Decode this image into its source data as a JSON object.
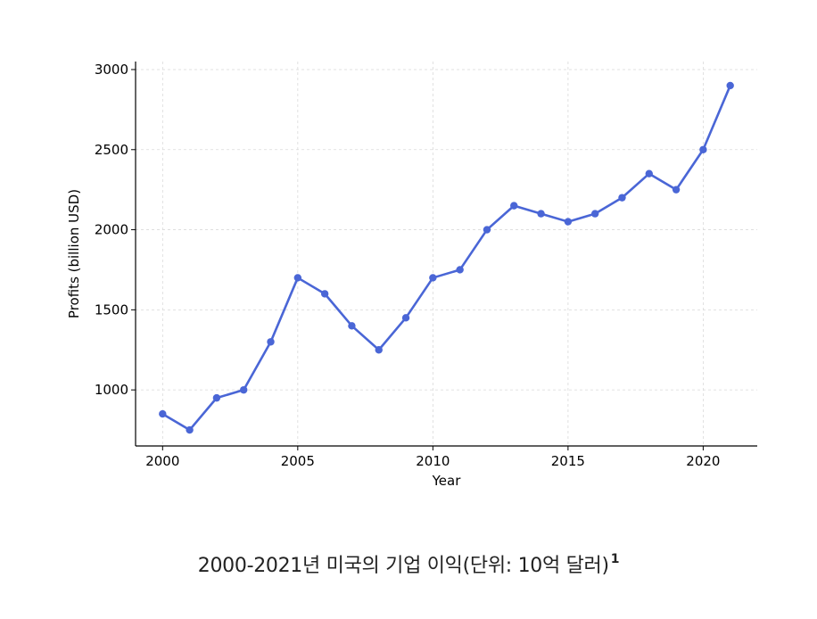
{
  "chart_data": {
    "type": "line",
    "xlabel": "Year",
    "ylabel": "Profits (billion USD)",
    "xlim": [
      1999,
      2022
    ],
    "ylim": [
      650,
      3050
    ],
    "x_ticks": [
      2000,
      2005,
      2010,
      2015,
      2020
    ],
    "y_ticks": [
      1000,
      1500,
      2000,
      2500,
      3000
    ],
    "grid": true,
    "series": [
      {
        "color": "#4a66d6",
        "x": [
          2000,
          2001,
          2002,
          2003,
          2004,
          2005,
          2006,
          2007,
          2008,
          2009,
          2010,
          2011,
          2012,
          2013,
          2014,
          2015,
          2016,
          2017,
          2018,
          2019,
          2020,
          2021
        ],
        "values": [
          850,
          750,
          950,
          1000,
          1300,
          1700,
          1600,
          1400,
          1250,
          1450,
          1700,
          1750,
          2000,
          2150,
          2100,
          2050,
          2100,
          2200,
          2350,
          2250,
          2500,
          2900
        ]
      }
    ]
  },
  "caption": {
    "text": "2000-2021년 미국의 기업 이익(단위: 10억 달러)",
    "footnote": "1"
  }
}
